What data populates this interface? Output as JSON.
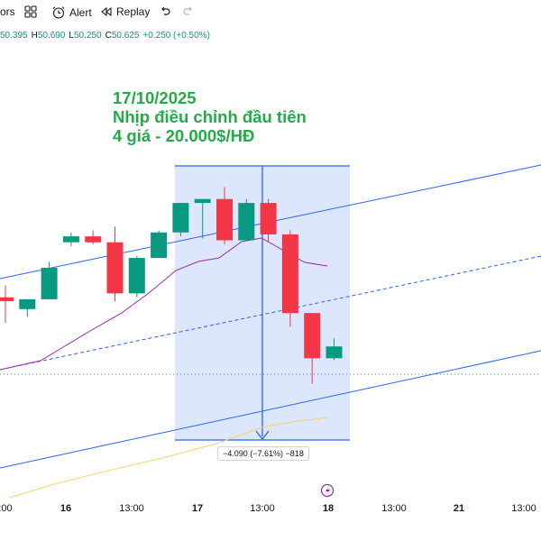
{
  "toolbar": {
    "indicators_label": "ors",
    "alert_label": "Alert",
    "replay_label": "Replay"
  },
  "ohlc": {
    "open": "50.395",
    "high_prefix": "H",
    "high": "50.690",
    "low_prefix": "L",
    "low": "50.250",
    "close_prefix": "C",
    "close": "50.625",
    "change": "+0.250 (+0.50%)"
  },
  "annotation": {
    "line1": "17/10/2025",
    "line2": "Nhịp điều chỉnh đầu tiên",
    "line3": "4 giá - 20.000$/HĐ"
  },
  "measure": {
    "text": "−4.090 (−7.61%) −818"
  },
  "xaxis": {
    "labels": [
      ":00",
      "16",
      "13:00",
      "17",
      "13:00",
      "18",
      "13:00",
      "21",
      "13:00"
    ]
  },
  "colors": {
    "up": "#089981",
    "down": "#f23645",
    "channel": "#2962ff",
    "annotation": "#22ab47",
    "ma_pink": "#9c27b0",
    "ma_yellow": "#f5d36b"
  },
  "chart_data": {
    "type": "candlestick",
    "candles": [
      {
        "open": 50.6,
        "high": 51.2,
        "low": 49.3,
        "close": 50.4,
        "dir": "down"
      },
      {
        "open": 50.0,
        "high": 50.5,
        "low": 49.6,
        "close": 50.5,
        "dir": "up"
      },
      {
        "open": 50.5,
        "high": 52.4,
        "low": 50.5,
        "close": 52.1,
        "dir": "up"
      },
      {
        "open": 53.4,
        "high": 53.9,
        "low": 53.2,
        "close": 53.7,
        "dir": "up"
      },
      {
        "open": 53.7,
        "high": 54.0,
        "low": 53.3,
        "close": 53.4,
        "dir": "down"
      },
      {
        "open": 53.4,
        "high": 54.2,
        "low": 50.4,
        "close": 50.8,
        "dir": "down"
      },
      {
        "open": 50.8,
        "high": 52.7,
        "low": 50.6,
        "close": 52.6,
        "dir": "up"
      },
      {
        "open": 52.6,
        "high": 54.0,
        "low": 52.6,
        "close": 53.9,
        "dir": "up"
      },
      {
        "open": 53.9,
        "high": 55.4,
        "low": 53.7,
        "close": 55.4,
        "dir": "up"
      },
      {
        "open": 55.4,
        "high": 55.6,
        "low": 53.6,
        "close": 55.6,
        "dir": "up"
      },
      {
        "open": 55.6,
        "high": 56.2,
        "low": 53.3,
        "close": 53.5,
        "dir": "down"
      },
      {
        "open": 53.5,
        "high": 55.6,
        "low": 53.5,
        "close": 55.4,
        "dir": "up"
      },
      {
        "open": 55.4,
        "high": 55.6,
        "low": 53.4,
        "close": 53.8,
        "dir": "down"
      },
      {
        "open": 53.8,
        "high": 54.0,
        "low": 49.1,
        "close": 49.8,
        "dir": "down"
      },
      {
        "open": 49.8,
        "high": 49.8,
        "low": 46.2,
        "close": 47.5,
        "dir": "down"
      },
      {
        "open": 47.5,
        "high": 48.5,
        "low": 47.4,
        "close": 48.1,
        "dir": "up"
      }
    ]
  }
}
